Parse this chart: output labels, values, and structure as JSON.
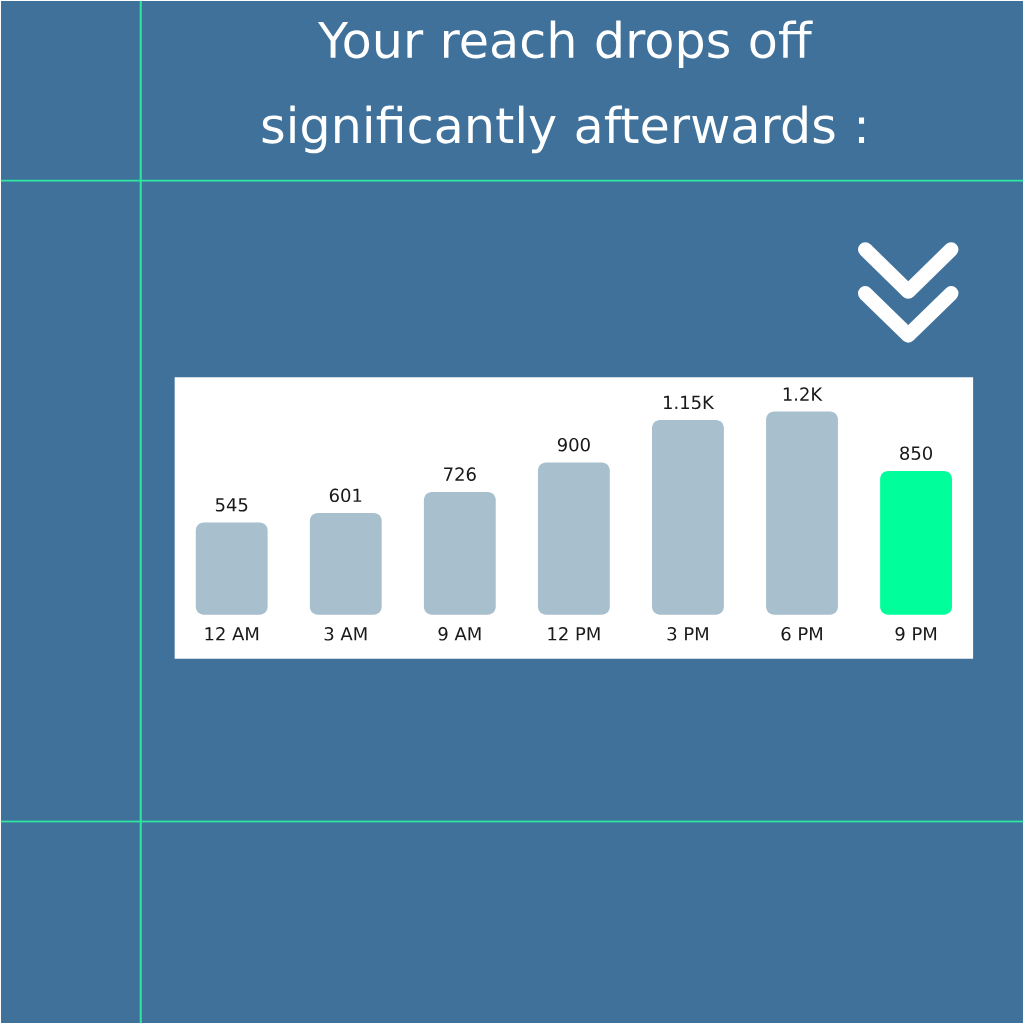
{
  "chart_data": {
    "type": "bar",
    "title": "Your reach drops off significantly afterwards :",
    "categories": [
      "12 AM",
      "3 AM",
      "9 AM",
      "12 PM",
      "3 PM",
      "6 PM",
      "9 PM"
    ],
    "values": [
      545,
      601,
      726,
      900,
      1150,
      1200,
      850
    ],
    "value_labels": [
      "545",
      "601",
      "726",
      "900",
      "1.15K",
      "1.2K",
      "850"
    ],
    "colors": [
      "#a8bfcd",
      "#a8bfcd",
      "#a8bfcd",
      "#a8bfcd",
      "#a8bfcd",
      "#a8bfcd",
      "#00ff9a"
    ]
  }
}
